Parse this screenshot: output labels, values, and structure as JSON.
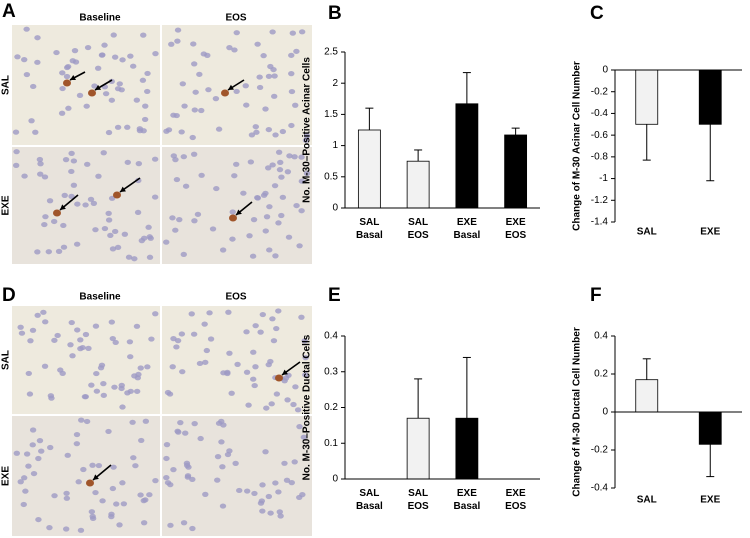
{
  "panel_letters": [
    "A",
    "B",
    "C",
    "D",
    "E",
    "F"
  ],
  "micrographs": [
    {
      "columns": [
        "Baseline",
        "EOS"
      ],
      "rows": [
        "SAL",
        "EXE"
      ]
    },
    {
      "columns": [
        "Baseline",
        "EOS"
      ],
      "rows": [
        "SAL",
        "EXE"
      ]
    }
  ],
  "chart_data": [
    {
      "type": "bar",
      "ylabel": "No. M-30–Positive Acinar Cells",
      "categories": [
        "SAL Basal",
        "SAL EOS",
        "EXE Basal",
        "EXE EOS"
      ],
      "values": [
        1.25,
        0.75,
        1.67,
        1.17
      ],
      "errors": [
        0.35,
        0.18,
        0.5,
        0.11
      ],
      "colors": [
        "#f2f2f2",
        "#f2f2f2",
        "#000000",
        "#000000"
      ],
      "ylim": [
        0,
        2.5
      ],
      "yticks": [
        0,
        0.5,
        1,
        1.5,
        2,
        2.5
      ]
    },
    {
      "type": "bar",
      "ylabel": "Change of M-30 Acinar Cell Number",
      "categories": [
        "SAL",
        "EXE"
      ],
      "values": [
        -0.5,
        -0.5
      ],
      "errors": [
        0.33,
        0.52
      ],
      "colors": [
        "#f2f2f2",
        "#000000"
      ],
      "ylim": [
        -1.4,
        0
      ],
      "yticks": [
        0,
        -0.2,
        -0.4,
        -0.6,
        -0.8,
        -1,
        -1.2,
        -1.4
      ]
    },
    {
      "type": "bar",
      "ylabel": "No. M-30–Positive Ductal  Cells",
      "categories": [
        "SAL Basal",
        "SAL EOS",
        "EXE Basal",
        "EXE EOS"
      ],
      "values": [
        0,
        0.17,
        0.17,
        0
      ],
      "errors": [
        0,
        0.11,
        0.17,
        0
      ],
      "colors": [
        "#f2f2f2",
        "#f2f2f2",
        "#000000",
        "#000000"
      ],
      "ylim": [
        0,
        0.4
      ],
      "yticks": [
        0,
        0.1,
        0.2,
        0.3,
        0.4
      ]
    },
    {
      "type": "bar",
      "ylabel": "Change of  M-30 Ductal Cell Number",
      "categories": [
        "SAL",
        "EXE"
      ],
      "values": [
        0.17,
        -0.17
      ],
      "errors": [
        0.11,
        0.17
      ],
      "colors": [
        "#f2f2f2",
        "#000000"
      ],
      "ylim": [
        -0.4,
        0.4
      ],
      "yticks": [
        -0.4,
        -0.2,
        0,
        0.2,
        0.4
      ]
    }
  ]
}
